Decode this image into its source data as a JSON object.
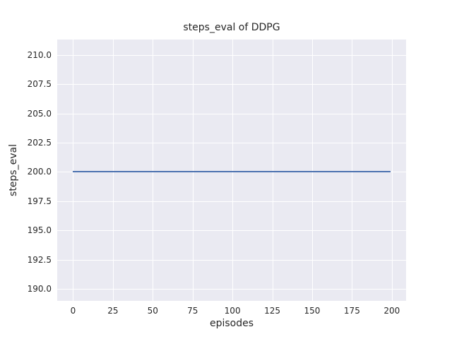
{
  "figure": {
    "background_color": "#ffffff"
  },
  "chart_data": {
    "type": "line",
    "title": "steps_eval of DDPG",
    "xlabel": "episodes",
    "ylabel": "steps_eval",
    "xlim": [
      -9.95,
      208.95
    ],
    "ylim": [
      189.0,
      211.3
    ],
    "xticks": [
      0,
      25,
      50,
      75,
      100,
      125,
      150,
      175,
      200
    ],
    "xtick_labels": [
      "0",
      "25",
      "50",
      "75",
      "100",
      "125",
      "150",
      "175",
      "200"
    ],
    "yticks": [
      190.0,
      192.5,
      195.0,
      197.5,
      200.0,
      202.5,
      205.0,
      207.5,
      210.0
    ],
    "ytick_labels": [
      "190.0",
      "192.5",
      "195.0",
      "197.5",
      "200.0",
      "202.5",
      "205.0",
      "207.5",
      "210.0"
    ],
    "grid": true,
    "legend_position": "none",
    "plot_background_color": "#eaeaf2",
    "grid_color": "#ffffff",
    "text_color": "#262626",
    "series": [
      {
        "name": "DDPG",
        "color": "#4c72b0",
        "x": [
          0,
          199
        ],
        "y": [
          200,
          200
        ]
      }
    ]
  }
}
